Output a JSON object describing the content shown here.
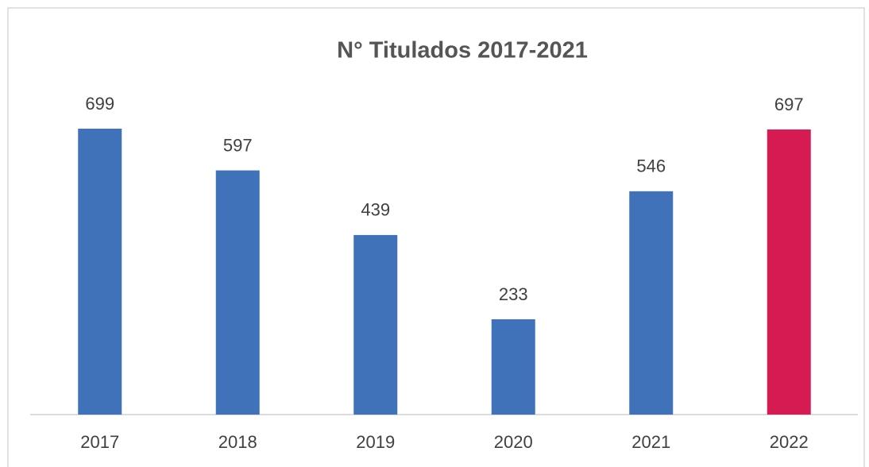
{
  "chart_data": {
    "type": "bar",
    "title": "N° Titulados 2017-2021",
    "categories": [
      "2017",
      "2018",
      "2019",
      "2020",
      "2021",
      "2022"
    ],
    "values": [
      699,
      597,
      439,
      233,
      546,
      697
    ],
    "colors": [
      "#3f72b8",
      "#3f72b8",
      "#3f72b8",
      "#3f72b8",
      "#3f72b8",
      "#d51b52"
    ],
    "ylim": [
      0,
      800
    ]
  }
}
